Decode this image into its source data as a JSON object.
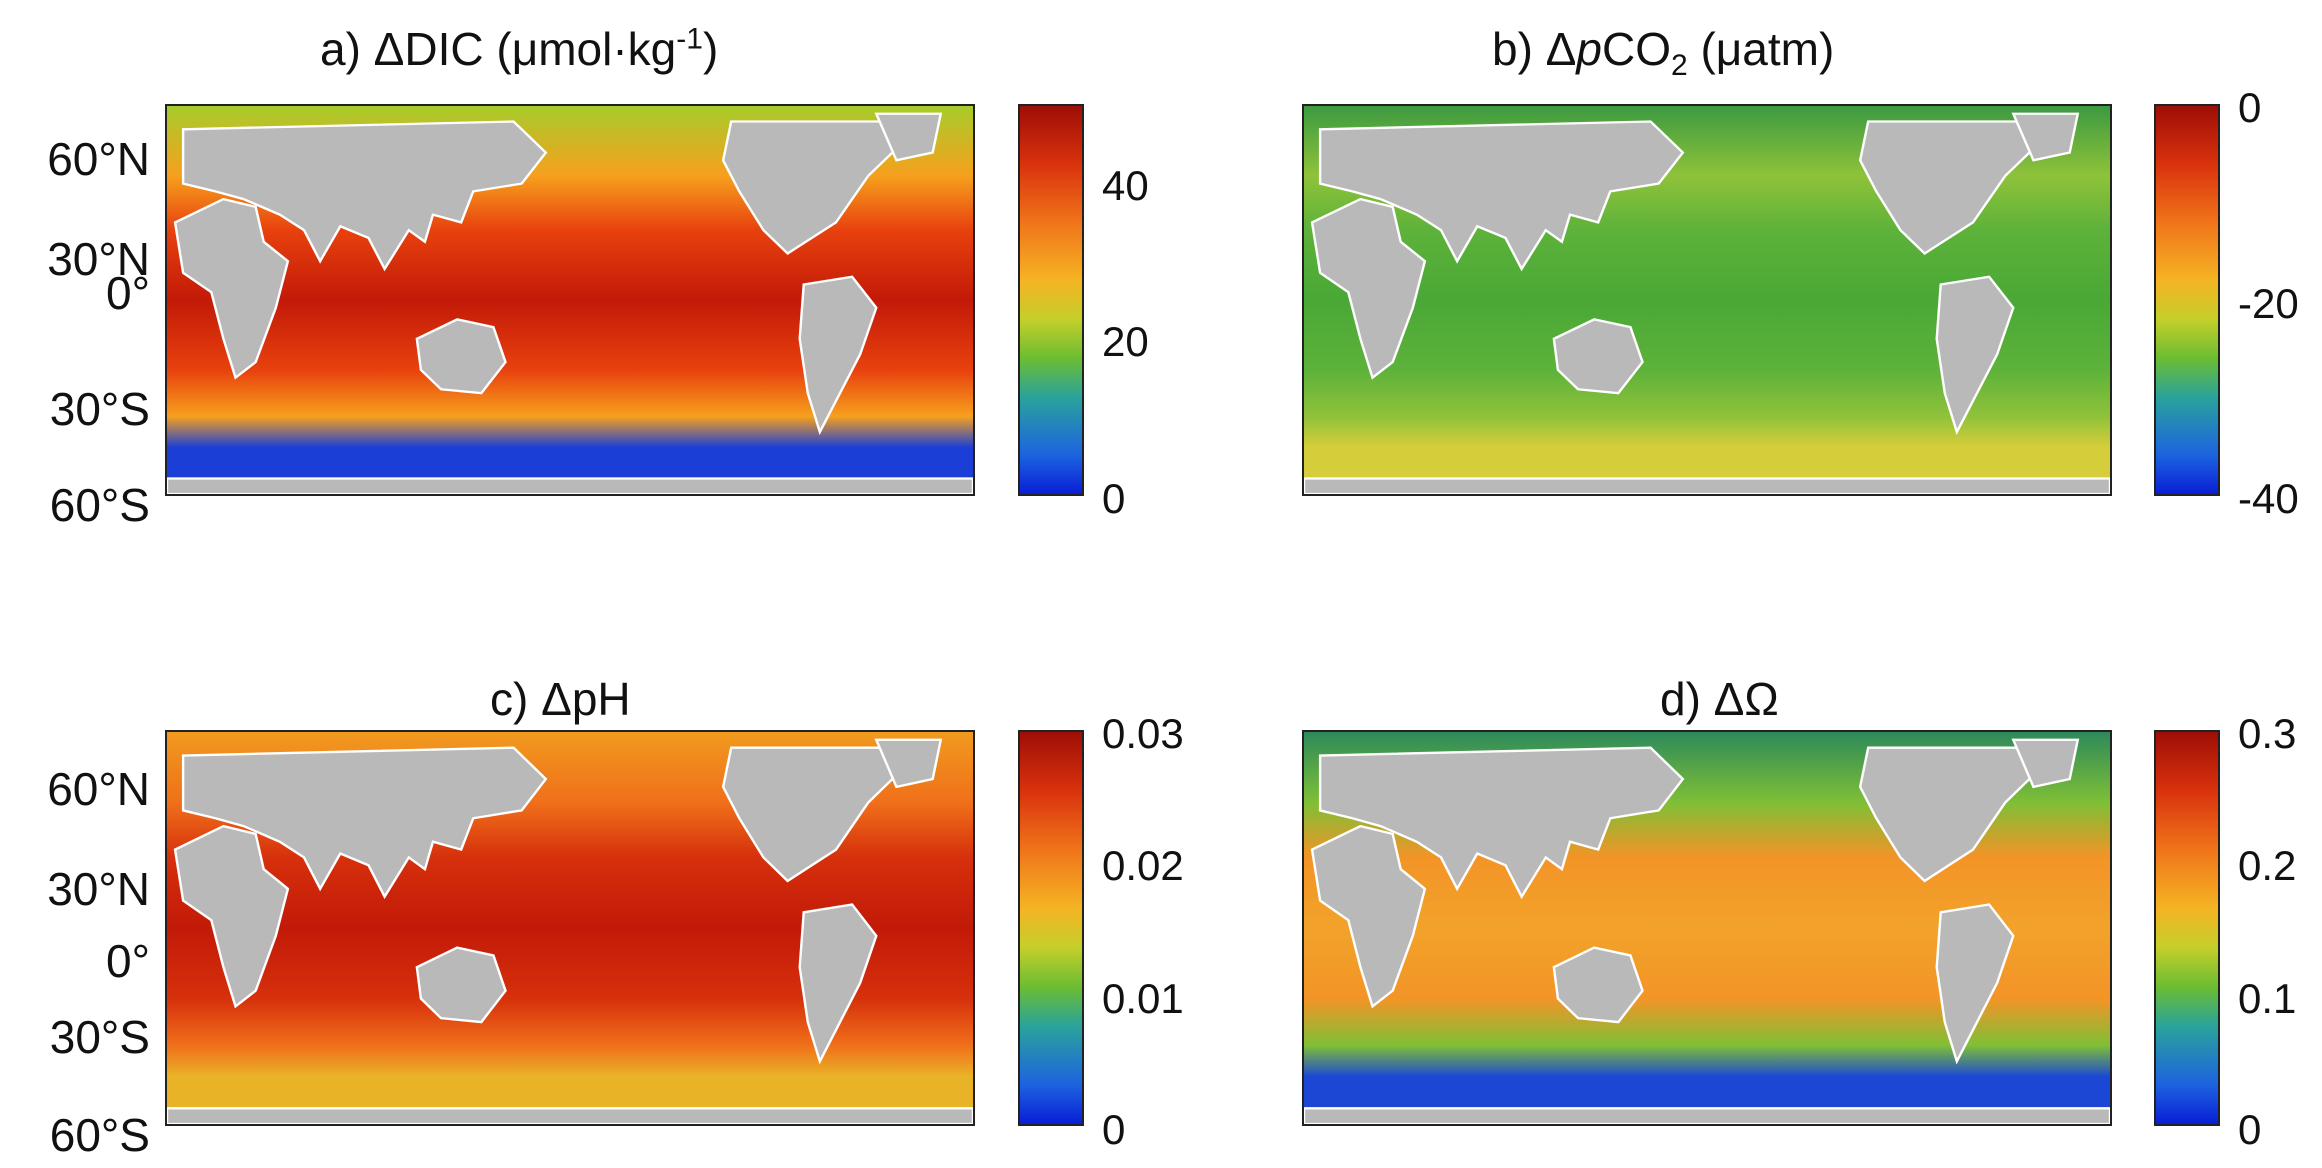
{
  "panels": [
    {
      "id": "a",
      "title": "a) ΔDIC (μmol·kg",
      "title_sup": "-1",
      "title_end": ")",
      "colorbar": {
        "ticks": [
          "40",
          "20",
          "0"
        ],
        "min": 0,
        "max": 50
      },
      "lat_labels": [
        "60°N",
        "30°N",
        "0°",
        "30°S",
        "60°S"
      ],
      "field": {
        "tropics": "#c21a08",
        "subtropics": "#e8410e",
        "temperate": "#f6a01d",
        "polar": "#a7cc2b",
        "southern": "#1b3fd6"
      }
    },
    {
      "id": "b",
      "title": "b) Δ",
      "title_italic": "p",
      "title_mid": "CO",
      "title_sub": "2",
      "title_end": " (μatm)",
      "colorbar": {
        "ticks": [
          "0",
          "-20",
          "-40"
        ],
        "min": -40,
        "max": 0
      },
      "lat_labels": [],
      "field": {
        "tropics": "#4aa836",
        "subtropics": "#5db23a",
        "temperate": "#8fc23a",
        "polar": "#3c9a40",
        "southern": "#d6cd3a"
      }
    },
    {
      "id": "c",
      "title": "c) ΔpH",
      "colorbar": {
        "ticks": [
          "0.03",
          "0.02",
          "0.01",
          "0"
        ],
        "min": 0,
        "max": 0.03
      },
      "lat_labels": [
        "60°N",
        "30°N",
        "0°",
        "30°S",
        "60°S"
      ],
      "field": {
        "tropics": "#c21a08",
        "subtropics": "#d6300c",
        "temperate": "#f0701a",
        "polar": "#f19a1f",
        "southern": "#e9b328"
      }
    },
    {
      "id": "d",
      "title": "d) ΔΩ",
      "colorbar": {
        "ticks": [
          "0.3",
          "0.2",
          "0.1",
          "0"
        ],
        "min": 0,
        "max": 0.3
      },
      "lat_labels": [],
      "field": {
        "tropics": "#f2a32a",
        "subtropics": "#f39427",
        "temperate": "#7fbf36",
        "polar": "#2d8a5a",
        "southern": "#1b47d4"
      }
    }
  ],
  "colors": {
    "land": "#b9b9b9",
    "frame": "#222222"
  }
}
